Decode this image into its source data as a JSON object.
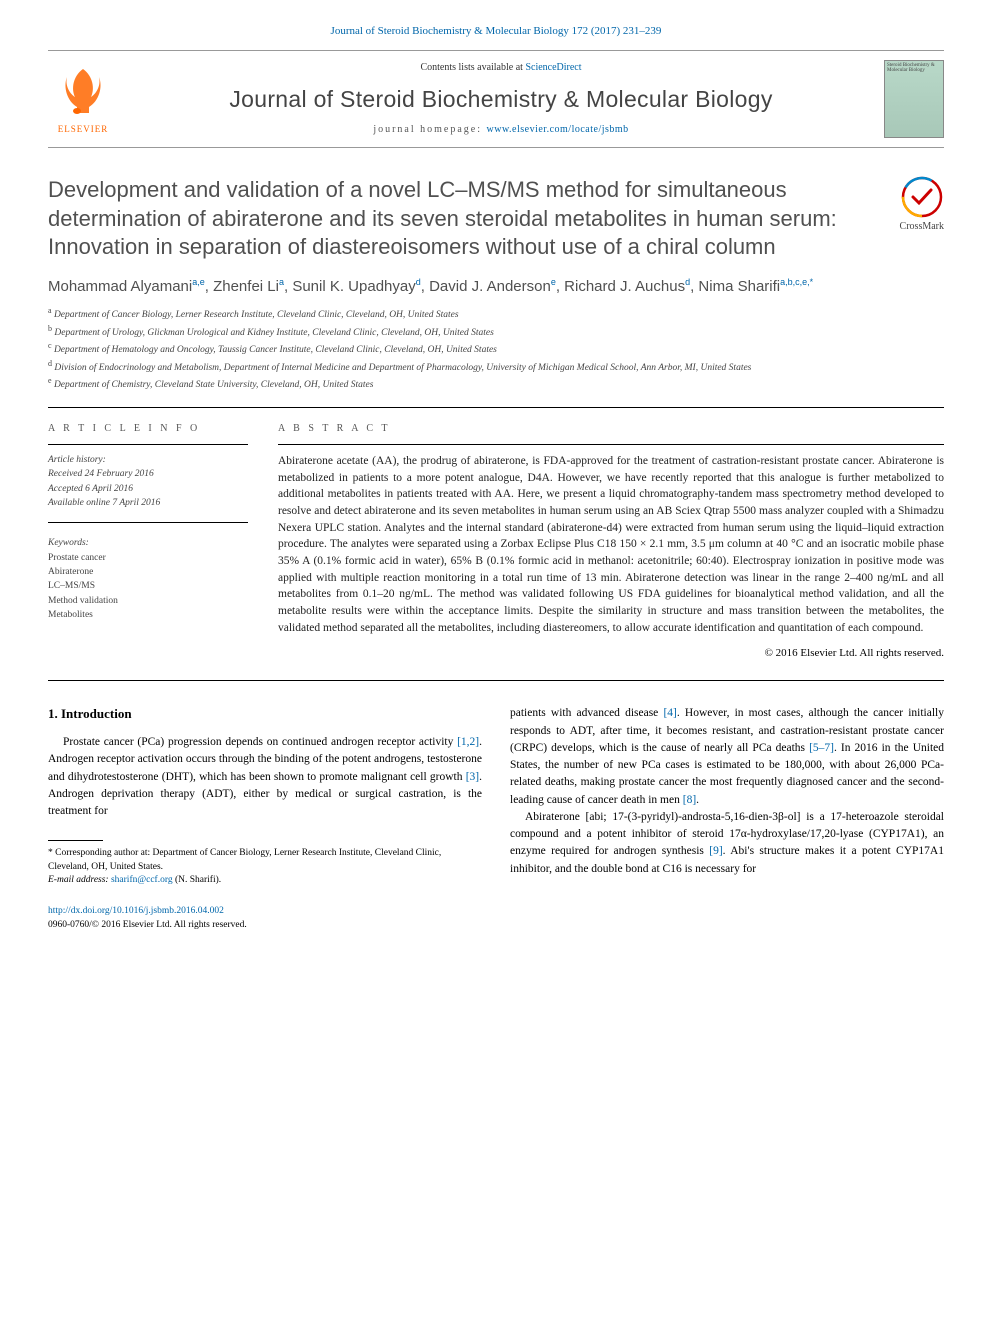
{
  "header": {
    "citation": "Journal of Steroid Biochemistry & Molecular Biology 172 (2017) 231–239",
    "contents_prefix": "Contents lists available at ",
    "contents_link": "ScienceDirect",
    "journal_name": "Journal of Steroid Biochemistry & Molecular Biology",
    "homepage_prefix": "journal homepage: ",
    "homepage_url": "www.elsevier.com/locate/jsbmb",
    "elsevier_label": "ELSEVIER",
    "cover_thumb_text": "Steroid Biochemistry & Molecular Biology"
  },
  "crossmark": {
    "label": "CrossMark"
  },
  "article": {
    "title": "Development and validation of a novel LC–MS/MS method for simultaneous determination of abiraterone and its seven steroidal metabolites in human serum: Innovation in separation of diastereoisomers without use of a chiral column",
    "authors_html": "Mohammad Alyamani<sup>a,e</sup>, Zhenfei Li<sup>a</sup>, Sunil K. Upadhyay<sup>d</sup>, David J. Anderson<sup>e</sup>, Richard J. Auchus<sup>d</sup>, Nima Sharifi<sup>a,b,c,e,*</sup>",
    "affiliations": [
      "a Department of Cancer Biology, Lerner Research Institute, Cleveland Clinic, Cleveland, OH, United States",
      "b Department of Urology, Glickman Urological and Kidney Institute, Cleveland Clinic, Cleveland, OH, United States",
      "c Department of Hematology and Oncology, Taussig Cancer Institute, Cleveland Clinic, Cleveland, OH, United States",
      "d Division of Endocrinology and Metabolism, Department of Internal Medicine and Department of Pharmacology, University of Michigan Medical School, Ann Arbor, MI, United States",
      "e Department of Chemistry, Cleveland State University, Cleveland, OH, United States"
    ]
  },
  "article_info": {
    "heading": "A R T I C L E  I N F O",
    "history_label": "Article history:",
    "history": [
      "Received 24 February 2016",
      "Accepted 6 April 2016",
      "Available online 7 April 2016"
    ],
    "keywords_label": "Keywords:",
    "keywords": [
      "Prostate cancer",
      "Abiraterone",
      "LC–MS/MS",
      "Method validation",
      "Metabolites"
    ]
  },
  "abstract": {
    "heading": "A B S T R A C T",
    "text": "Abiraterone acetate (AA), the prodrug of abiraterone, is FDA-approved for the treatment of castration-resistant prostate cancer. Abiraterone is metabolized in patients to a more potent analogue, D4A. However, we have recently reported that this analogue is further metabolized to additional metabolites in patients treated with AA. Here, we present a liquid chromatography-tandem mass spectrometry method developed to resolve and detect abiraterone and its seven metabolites in human serum using an AB Sciex Qtrap 5500 mass analyzer coupled with a Shimadzu Nexera UPLC station. Analytes and the internal standard (abiraterone-d4) were extracted from human serum using the liquid–liquid extraction procedure. The analytes were separated using a Zorbax Eclipse Plus C18 150 × 2.1 mm, 3.5 μm column at 40 °C and an isocratic mobile phase 35% A (0.1% formic acid in water), 65% B (0.1% formic acid in methanol: acetonitrile; 60:40). Electrospray ionization in positive mode was applied with multiple reaction monitoring in a total run time of 13 min. Abiraterone detection was linear in the range 2–400 ng/mL and all metabolites from 0.1–20 ng/mL. The method was validated following US FDA guidelines for bioanalytical method validation, and all the metabolite results were within the acceptance limits. Despite the similarity in structure and mass transition between the metabolites, the validated method separated all the metabolites, including diastereomers, to allow accurate identification and quantitation of each compound.",
    "copyright": "© 2016 Elsevier Ltd. All rights reserved."
  },
  "body": {
    "intro_heading": "1. Introduction",
    "col1_p1_pre": "Prostate cancer (PCa) progression depends on continued androgen receptor activity ",
    "col1_ref1": "[1,2]",
    "col1_p1_mid1": ". Androgen receptor activation occurs through the binding of the potent androgens, testosterone and dihydrotestosterone (DHT), which has been shown to promote malignant cell growth ",
    "col1_ref2": "[3]",
    "col1_p1_post": ". Androgen deprivation therapy (ADT), either by medical or surgical castration, is the treatment for",
    "col2_p1_pre": "patients with advanced disease ",
    "col2_ref1": "[4]",
    "col2_p1_mid1": ". However, in most cases, although the cancer initially responds to ADT, after time, it becomes resistant, and castration-resistant prostate cancer (CRPC) develops, which is the cause of nearly all PCa deaths ",
    "col2_ref2": "[5–7]",
    "col2_p1_mid2": ". In 2016 in the United States, the number of new PCa cases is estimated to be 180,000, with about 26,000 PCa-related deaths, making prostate cancer the most frequently diagnosed cancer and the second-leading cause of cancer death in men ",
    "col2_ref3": "[8]",
    "col2_p1_post": ".",
    "col2_p2_pre": "Abiraterone [abi; 17-(3-pyridyl)-androsta-5,16-dien-3β-ol] is a 17-heteroazole steroidal compound and a potent inhibitor of steroid 17α-hydroxylase/17,20-lyase (CYP17A1), an enzyme required for androgen synthesis ",
    "col2_ref4": "[9]",
    "col2_p2_post": ". Abi's structure makes it a potent CYP17A1 inhibitor, and the double bond at C16 is necessary for"
  },
  "footnote": {
    "corresponding": "* Corresponding author at: Department of Cancer Biology, Lerner Research Institute, Cleveland Clinic, Cleveland, OH, United States.",
    "email_label": "E-mail address: ",
    "email": "sharifn@ccf.org",
    "email_suffix": " (N. Sharifi)."
  },
  "footer": {
    "doi": "http://dx.doi.org/10.1016/j.jsbmb.2016.04.002",
    "issn_line": "0960-0760/© 2016 Elsevier Ltd. All rights reserved."
  },
  "colors": {
    "link": "#0066aa",
    "elsevier_orange": "#ff6600",
    "heading_gray": "#505050"
  }
}
